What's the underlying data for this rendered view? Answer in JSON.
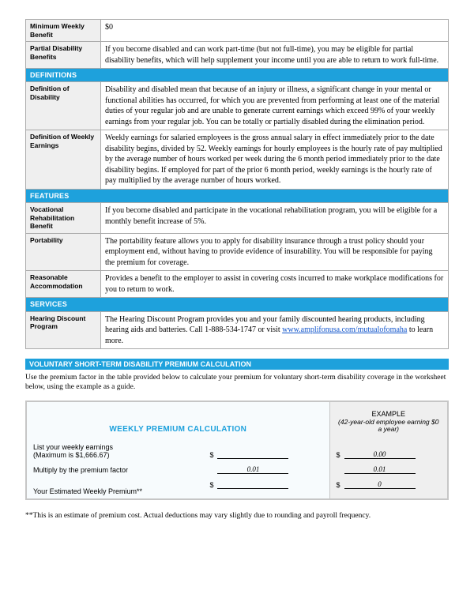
{
  "rows": [
    {
      "type": "row",
      "label": "Minimum Weekly Benefit",
      "text": "$0"
    },
    {
      "type": "row",
      "label": "Partial Disability Benefits",
      "text": "If you become disabled and can work part-time (but not full-time), you may be eligible for partial disability benefits, which will help supplement your income until you are able to return to work full-time."
    },
    {
      "type": "section",
      "title": "DEFINITIONS"
    },
    {
      "type": "row",
      "label": "Definition of Disability",
      "text": "Disability and disabled mean that because of an injury or illness, a significant change in your mental or functional abilities has occurred, for which you are prevented from performing at least one of the material duties of your regular job and are unable to generate current earnings which exceed 99% of your weekly earnings from your regular job. You can be totally or partially disabled during the elimination period."
    },
    {
      "type": "row",
      "label": "Definition of Weekly Earnings",
      "text": "Weekly earnings for salaried employees is the gross annual salary in effect immediately prior to the date disability begins, divided by 52. Weekly earnings for hourly employees is the hourly rate of pay multiplied by the average number of hours worked per week during the 6 month period immediately prior to the date disability begins. If employed for part of the prior 6 month period, weekly earnings is the hourly rate of pay multiplied by the average number of hours worked."
    },
    {
      "type": "section",
      "title": "FEATURES"
    },
    {
      "type": "row",
      "label": "Vocational Rehabilitation Benefit",
      "text": "If you become disabled and participate in the vocational rehabilitation program, you will be eligible for a monthly benefit increase of 5%."
    },
    {
      "type": "row",
      "label": "Portability",
      "text": "The portability feature allows you to apply for disability insurance through a trust policy should your employment end, without having to provide evidence of insurability. You will be responsible for paying the premium for coverage."
    },
    {
      "type": "row",
      "label": "Reasonable Accommodation",
      "text": "Provides a benefit to the employer to assist in covering costs incurred to make workplace modifications for you to return to work."
    },
    {
      "type": "section",
      "title": "SERVICES"
    },
    {
      "type": "link_row",
      "label": "Hearing Discount Program",
      "pre": "The Hearing Discount Program provides you and your family discounted hearing products, including hearing aids and batteries. Call 1-888-534-1747 or visit ",
      "link": "www.amplifonusa.com/mutualofomaha",
      "post": " to learn more."
    }
  ],
  "calc": {
    "header": "VOLUNTARY SHORT-TERM DISABILITY PREMIUM CALCULATION",
    "intro": "Use the premium factor in the table provided below to calculate your premium for voluntary short-term disability coverage in the worksheet below, using the example as a guide.",
    "wpc_title": "WEEKLY PREMIUM CALCULATION",
    "example_label": "EXAMPLE",
    "example_sub": "(42-year-old employee earning $0 a year)",
    "line1_label": "List your weekly earnings",
    "line1_sub": "(Maximum is $1,666.67)",
    "line1_example": "0.00",
    "line2_label": "Multiply by the premium factor",
    "line2_input": "0.01",
    "line2_example": "0.01",
    "line3_label": "Your Estimated Weekly Premium**",
    "line3_example": "0"
  },
  "footnote": "**This is an estimate of premium cost. Actual deductions may vary slightly due to rounding and payroll frequency."
}
